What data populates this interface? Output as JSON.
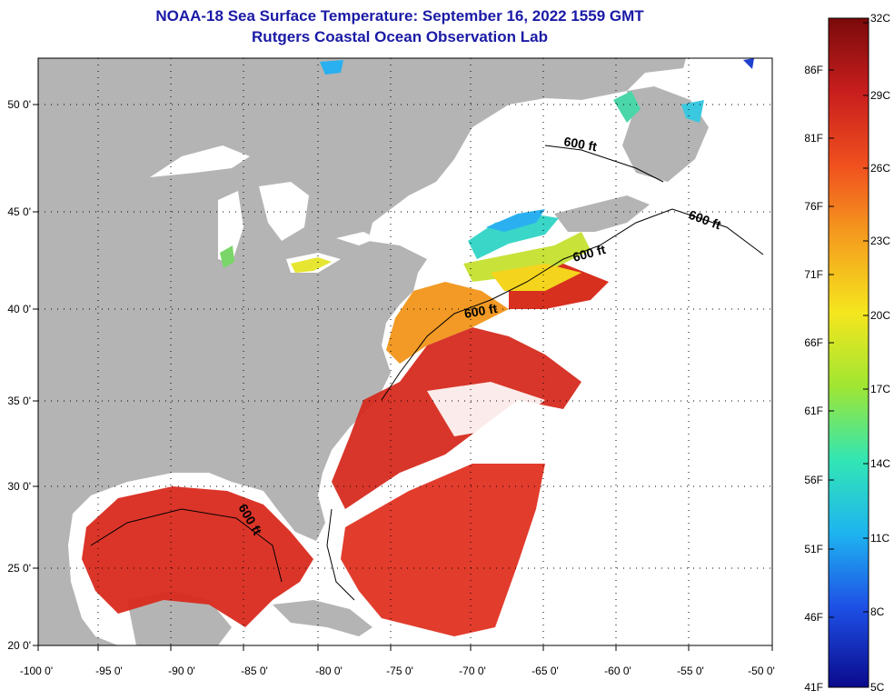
{
  "title": {
    "line1": "NOAA-18 Sea Surface Temperature:  September 16, 2022 1559 GMT",
    "line2": "Rutgers Coastal Ocean Observation Lab"
  },
  "axes": {
    "lon_ticks": [
      "-100 0'",
      "-95 0'",
      "-90 0'",
      "-85 0'",
      "-80 0'",
      "-75 0'",
      "-70 0'",
      "-65 0'",
      "-60 0'",
      "-55 0'",
      "-50 0'"
    ],
    "lat_ticks": [
      "50 0'",
      "45 0'",
      "40 0'",
      "35 0'",
      "30 0'",
      "25 0'",
      "20 0'"
    ]
  },
  "contours": {
    "label": "600 ft"
  },
  "colorbar": {
    "celsius_labels": [
      "32C",
      "29C",
      "26C",
      "23C",
      "20C",
      "17C",
      "14C",
      "11C",
      "8C",
      "5C"
    ],
    "fahrenheit_labels": [
      "86F",
      "81F",
      "76F",
      "71F",
      "66F",
      "61F",
      "56F",
      "51F",
      "46F",
      "41F"
    ],
    "colors": [
      "#7a0a0a",
      "#c81e1e",
      "#f0501e",
      "#f5a01e",
      "#f5e61e",
      "#a0e632",
      "#32e6b4",
      "#1eb4f0",
      "#1e50e6",
      "#0a0a8c"
    ]
  },
  "colors": {
    "land": "#b4b4b4",
    "no_data": "#ffffff",
    "title": "#1a1aa6"
  }
}
